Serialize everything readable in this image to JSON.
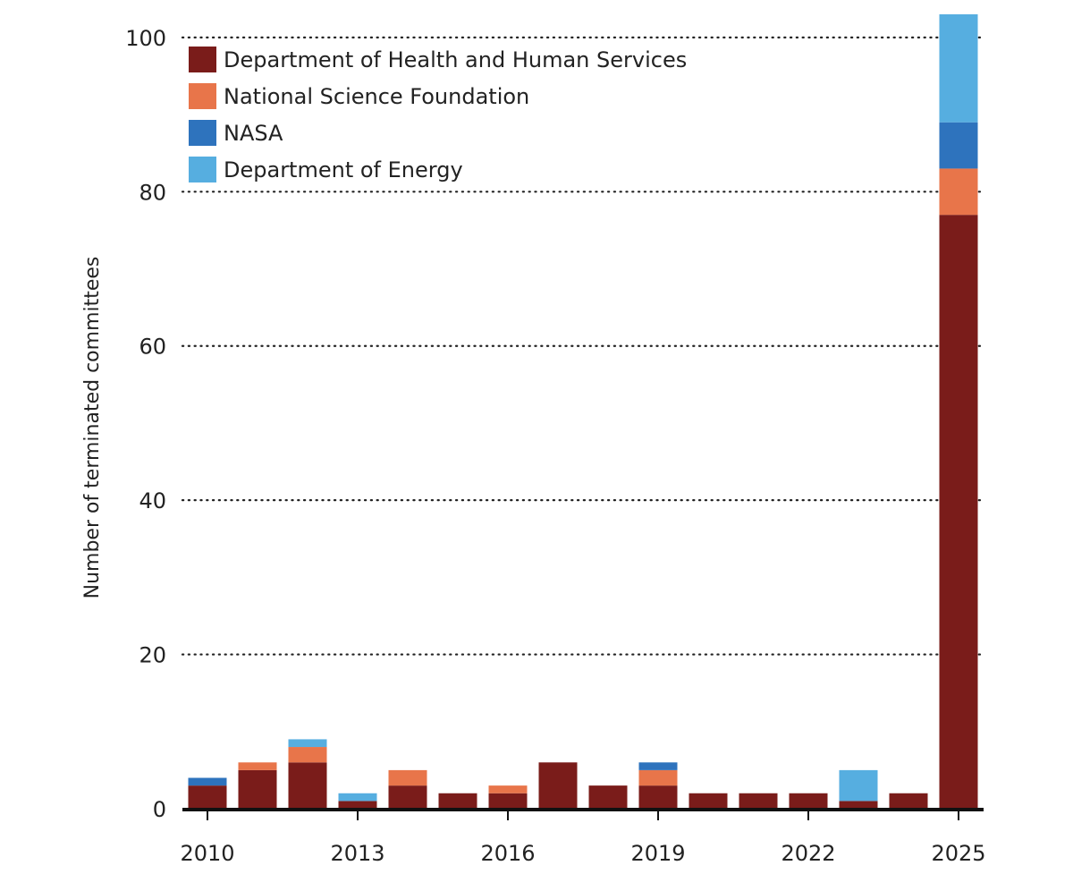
{
  "chart_data": {
    "type": "bar",
    "stacked": true,
    "title": "",
    "xlabel": "",
    "ylabel": "Number of terminated committees",
    "ylim": [
      0,
      103
    ],
    "yticks": [
      0,
      20,
      40,
      60,
      80,
      100
    ],
    "grid": true,
    "legend_position": "top-left",
    "categories": [
      "2010",
      "2011",
      "2012",
      "2013",
      "2014",
      "2015",
      "2016",
      "2017",
      "2018",
      "2019",
      "2020",
      "2021",
      "2022",
      "2023",
      "2024",
      "2025"
    ],
    "xticks": [
      "2010",
      "2013",
      "2016",
      "2019",
      "2022",
      "2025"
    ],
    "series": [
      {
        "name": "Department of Health and Human Services",
        "color": "#7a1c1a",
        "values": [
          3,
          5,
          6,
          1,
          3,
          2,
          2,
          6,
          3,
          3,
          2,
          2,
          2,
          1,
          2,
          77
        ]
      },
      {
        "name": "National Science Foundation",
        "color": "#e8754a",
        "values": [
          0,
          1,
          2,
          0,
          2,
          0,
          1,
          0,
          0,
          2,
          0,
          0,
          0,
          0,
          0,
          6
        ]
      },
      {
        "name": "NASA",
        "color": "#2e73bd",
        "values": [
          1,
          0,
          0,
          0,
          0,
          0,
          0,
          0,
          0,
          1,
          0,
          0,
          0,
          0,
          0,
          6
        ]
      },
      {
        "name": "Department of Energy",
        "color": "#56aee0",
        "values": [
          0,
          0,
          1,
          1,
          0,
          0,
          0,
          0,
          0,
          0,
          0,
          0,
          0,
          4,
          0,
          14
        ]
      }
    ]
  }
}
